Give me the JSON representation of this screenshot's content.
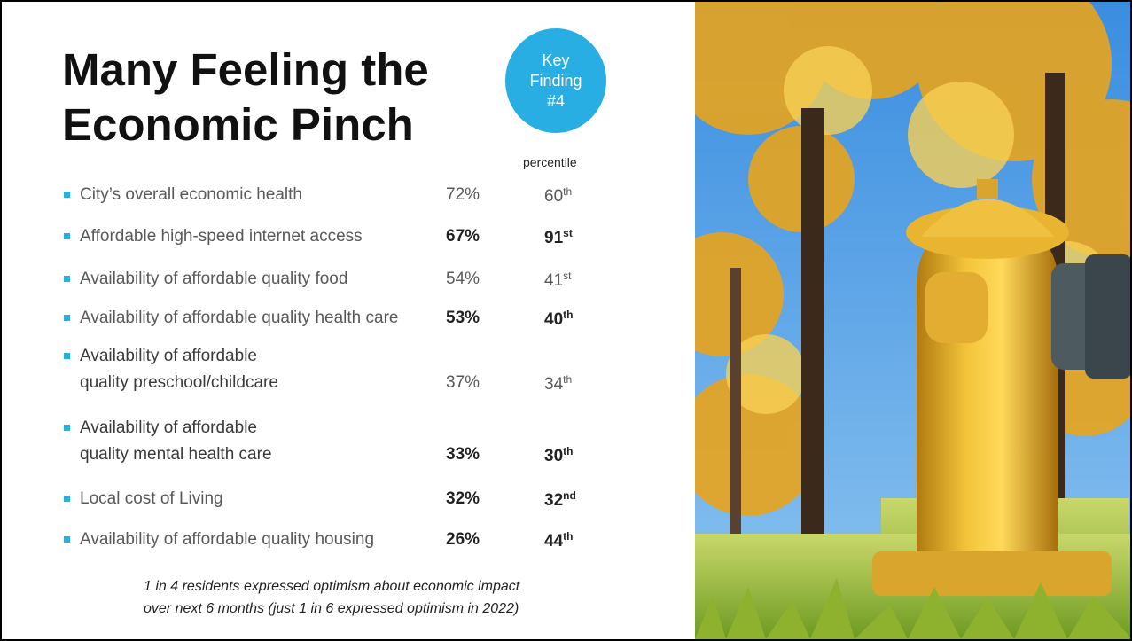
{
  "header": {
    "title_lines": [
      "Many Feeling the",
      "Economic Pinch"
    ],
    "badge_lines": [
      "Key",
      "Finding",
      "#4"
    ],
    "percentile_header": "percentile"
  },
  "rows": [
    {
      "label_lines": [
        "City’s overall economic health"
      ],
      "percent": "72%",
      "percentile": "60",
      "suffix": "th",
      "bold": false
    },
    {
      "label_lines": [
        "Affordable high-speed internet access"
      ],
      "percent": "67%",
      "percentile": "91",
      "suffix": "st",
      "bold": true
    },
    {
      "label_lines": [
        "Availability of affordable quality food"
      ],
      "percent": "54%",
      "percentile": "41",
      "suffix": "st",
      "bold": false
    },
    {
      "label_lines": [
        "Availability of affordable quality health care"
      ],
      "percent": "53%",
      "percentile": "40",
      "suffix": "th",
      "bold": true
    },
    {
      "label_lines": [
        "Availability of affordable",
        "quality preschool/childcare"
      ],
      "percent": "37%",
      "percentile": "34",
      "suffix": "th",
      "bold": false
    },
    {
      "label_lines": [
        "Availability of affordable",
        "quality mental health care"
      ],
      "percent": "33%",
      "percentile": "30",
      "suffix": "th",
      "bold": true
    },
    {
      "label_lines": [
        "Local cost of Living"
      ],
      "percent": "32%",
      "percentile": "32",
      "suffix": "nd",
      "bold": true
    },
    {
      "label_lines": [
        "Availability of affordable quality housing"
      ],
      "percent": "26%",
      "percentile": "44",
      "suffix": "th",
      "bold": true
    }
  ],
  "footnote_lines": [
    "1 in 4 residents expressed optimism about economic impact",
    "over next 6 months (just 1 in 6 expressed optimism in 2022)"
  ]
}
